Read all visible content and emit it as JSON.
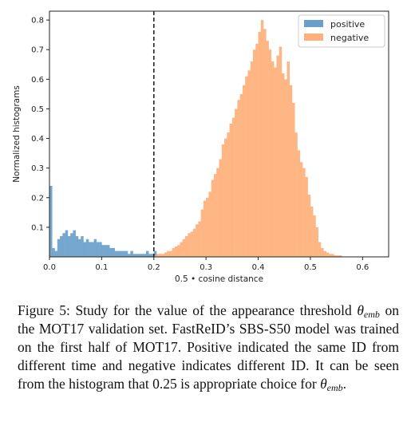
{
  "chart_data": {
    "type": "bar",
    "xlabel": "0.5 • cosine distance",
    "ylabel": "Normalized histograms",
    "xlim": [
      0.0,
      0.65
    ],
    "ylim": [
      0.0,
      0.83
    ],
    "x_ticks": [
      "0.0",
      "0.1",
      "0.2",
      "0.3",
      "0.4",
      "0.5",
      "0.6"
    ],
    "y_ticks": [
      "0.1",
      "0.2",
      "0.3",
      "0.4",
      "0.5",
      "0.6",
      "0.7",
      "0.8"
    ],
    "grid": false,
    "legend_position": "top-right",
    "bin_width": 0.005,
    "threshold_line": {
      "x": 0.2,
      "style": "dashed",
      "color": "#222222"
    },
    "series": [
      {
        "name": "positive",
        "color": "#6a9fcb",
        "bin_start": 0.0,
        "values": [
          0.24,
          0.03,
          0.02,
          0.06,
          0.07,
          0.08,
          0.09,
          0.07,
          0.08,
          0.09,
          0.07,
          0.06,
          0.07,
          0.05,
          0.06,
          0.05,
          0.05,
          0.06,
          0.05,
          0.05,
          0.04,
          0.04,
          0.04,
          0.03,
          0.03,
          0.02,
          0.02,
          0.02,
          0.02,
          0.02,
          0.01,
          0.02,
          0.01,
          0.01,
          0.01,
          0.01,
          0.01,
          0.02,
          0.01,
          0.01,
          0.02
        ]
      },
      {
        "name": "negative",
        "color": "#fdb07a",
        "bin_start": 0.2,
        "values": [
          0.005,
          0.01,
          0.01,
          0.01,
          0.015,
          0.02,
          0.02,
          0.03,
          0.035,
          0.04,
          0.05,
          0.06,
          0.07,
          0.08,
          0.085,
          0.095,
          0.11,
          0.12,
          0.16,
          0.19,
          0.2,
          0.22,
          0.26,
          0.28,
          0.3,
          0.33,
          0.38,
          0.4,
          0.42,
          0.45,
          0.47,
          0.5,
          0.53,
          0.55,
          0.58,
          0.61,
          0.63,
          0.66,
          0.7,
          0.72,
          0.76,
          0.8,
          0.77,
          0.73,
          0.7,
          0.66,
          0.64,
          0.68,
          0.71,
          0.62,
          0.6,
          0.66,
          0.58,
          0.52,
          0.42,
          0.36,
          0.32,
          0.3,
          0.27,
          0.21,
          0.17,
          0.14,
          0.1,
          0.05,
          0.03,
          0.02,
          0.015,
          0.01,
          0.01,
          0.005,
          0.005,
          0.005
        ]
      }
    ]
  },
  "caption": {
    "p1": "Figure 5: Study for the value of the appearance threshold ",
    "theta": "θ",
    "emb": "emb",
    "p2": " on the MOT17 validation set. FastReID’s SBS-S50 model was trained on the first half of MOT17. Positive indicated the same ID from different time and negative indicates different ID. It can be seen from the histogram that 0.25 is appropriate choice for ",
    "theta2": "θ",
    "emb2": "emb",
    "p3": "."
  }
}
